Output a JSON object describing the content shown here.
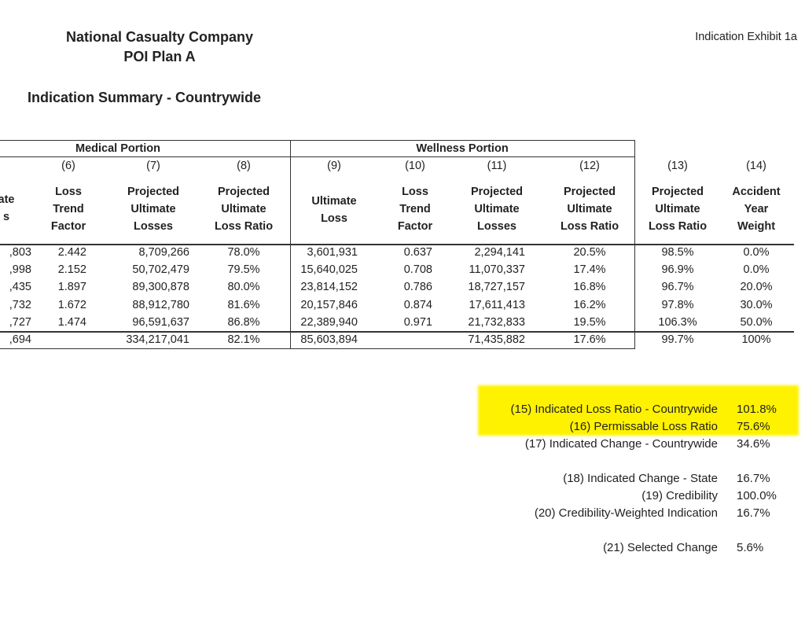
{
  "header": {
    "company": "National Casualty Company",
    "plan": "POI Plan A",
    "exhibit": "Indication Exhibit 1a",
    "subtitle": "Indication Summary - Countrywide"
  },
  "table": {
    "group_medical": "Medical Portion",
    "group_wellness": "Wellness Portion",
    "columns": [
      {
        "num": "",
        "label": "ate\ns"
      },
      {
        "num": "(6)",
        "label": "Loss\nTrend\nFactor"
      },
      {
        "num": "(7)",
        "label": "Projected\nUltimate\nLosses"
      },
      {
        "num": "(8)",
        "label": "Projected\nUltimate\nLoss Ratio"
      },
      {
        "num": "(9)",
        "label": "Ultimate\nLoss"
      },
      {
        "num": "(10)",
        "label": "Loss\nTrend\nFactor"
      },
      {
        "num": "(11)",
        "label": "Projected\nUltimate\nLosses"
      },
      {
        "num": "(12)",
        "label": "Projected\nUltimate\nLoss Ratio"
      },
      {
        "num": "(13)",
        "label": "Projected\nUltimate\nLoss Ratio"
      },
      {
        "num": "(14)",
        "label": "Accident\nYear\nWeight"
      }
    ],
    "rows": [
      [
        ",803",
        "2.442",
        "8,709,266",
        "78.0%",
        "3,601,931",
        "0.637",
        "2,294,141",
        "20.5%",
        "98.5%",
        "0.0%"
      ],
      [
        ",998",
        "2.152",
        "50,702,479",
        "79.5%",
        "15,640,025",
        "0.708",
        "11,070,337",
        "17.4%",
        "96.9%",
        "0.0%"
      ],
      [
        ",435",
        "1.897",
        "89,300,878",
        "80.0%",
        "23,814,152",
        "0.786",
        "18,727,157",
        "16.8%",
        "96.7%",
        "20.0%"
      ],
      [
        ",732",
        "1.672",
        "88,912,780",
        "81.6%",
        "20,157,846",
        "0.874",
        "17,611,413",
        "16.2%",
        "97.8%",
        "30.0%"
      ],
      [
        ",727",
        "1.474",
        "96,591,637",
        "86.8%",
        "22,389,940",
        "0.971",
        "21,732,833",
        "19.5%",
        "106.3%",
        "50.0%"
      ]
    ],
    "total": [
      ",694",
      "",
      "334,217,041",
      "82.1%",
      "85,603,894",
      "",
      "71,435,882",
      "17.6%",
      "99.7%",
      "100%"
    ]
  },
  "summary": [
    {
      "label": "(15) Indicated Loss Ratio - Countrywide",
      "value": "101.8%"
    },
    {
      "label": "(16) Permissable Loss Ratio",
      "value": "75.6%"
    },
    {
      "label": "(17) Indicated Change - Countrywide",
      "value": "34.6%"
    },
    {
      "label": "(18) Indicated Change - State",
      "value": "16.7%"
    },
    {
      "label": "(19) Credibility",
      "value": "100.0%"
    },
    {
      "label": "(20) Credibility-Weighted Indication",
      "value": "16.7%"
    },
    {
      "label": "(21) Selected Change",
      "value": "5.6%"
    }
  ],
  "colors": {
    "highlight": "#fff200"
  }
}
